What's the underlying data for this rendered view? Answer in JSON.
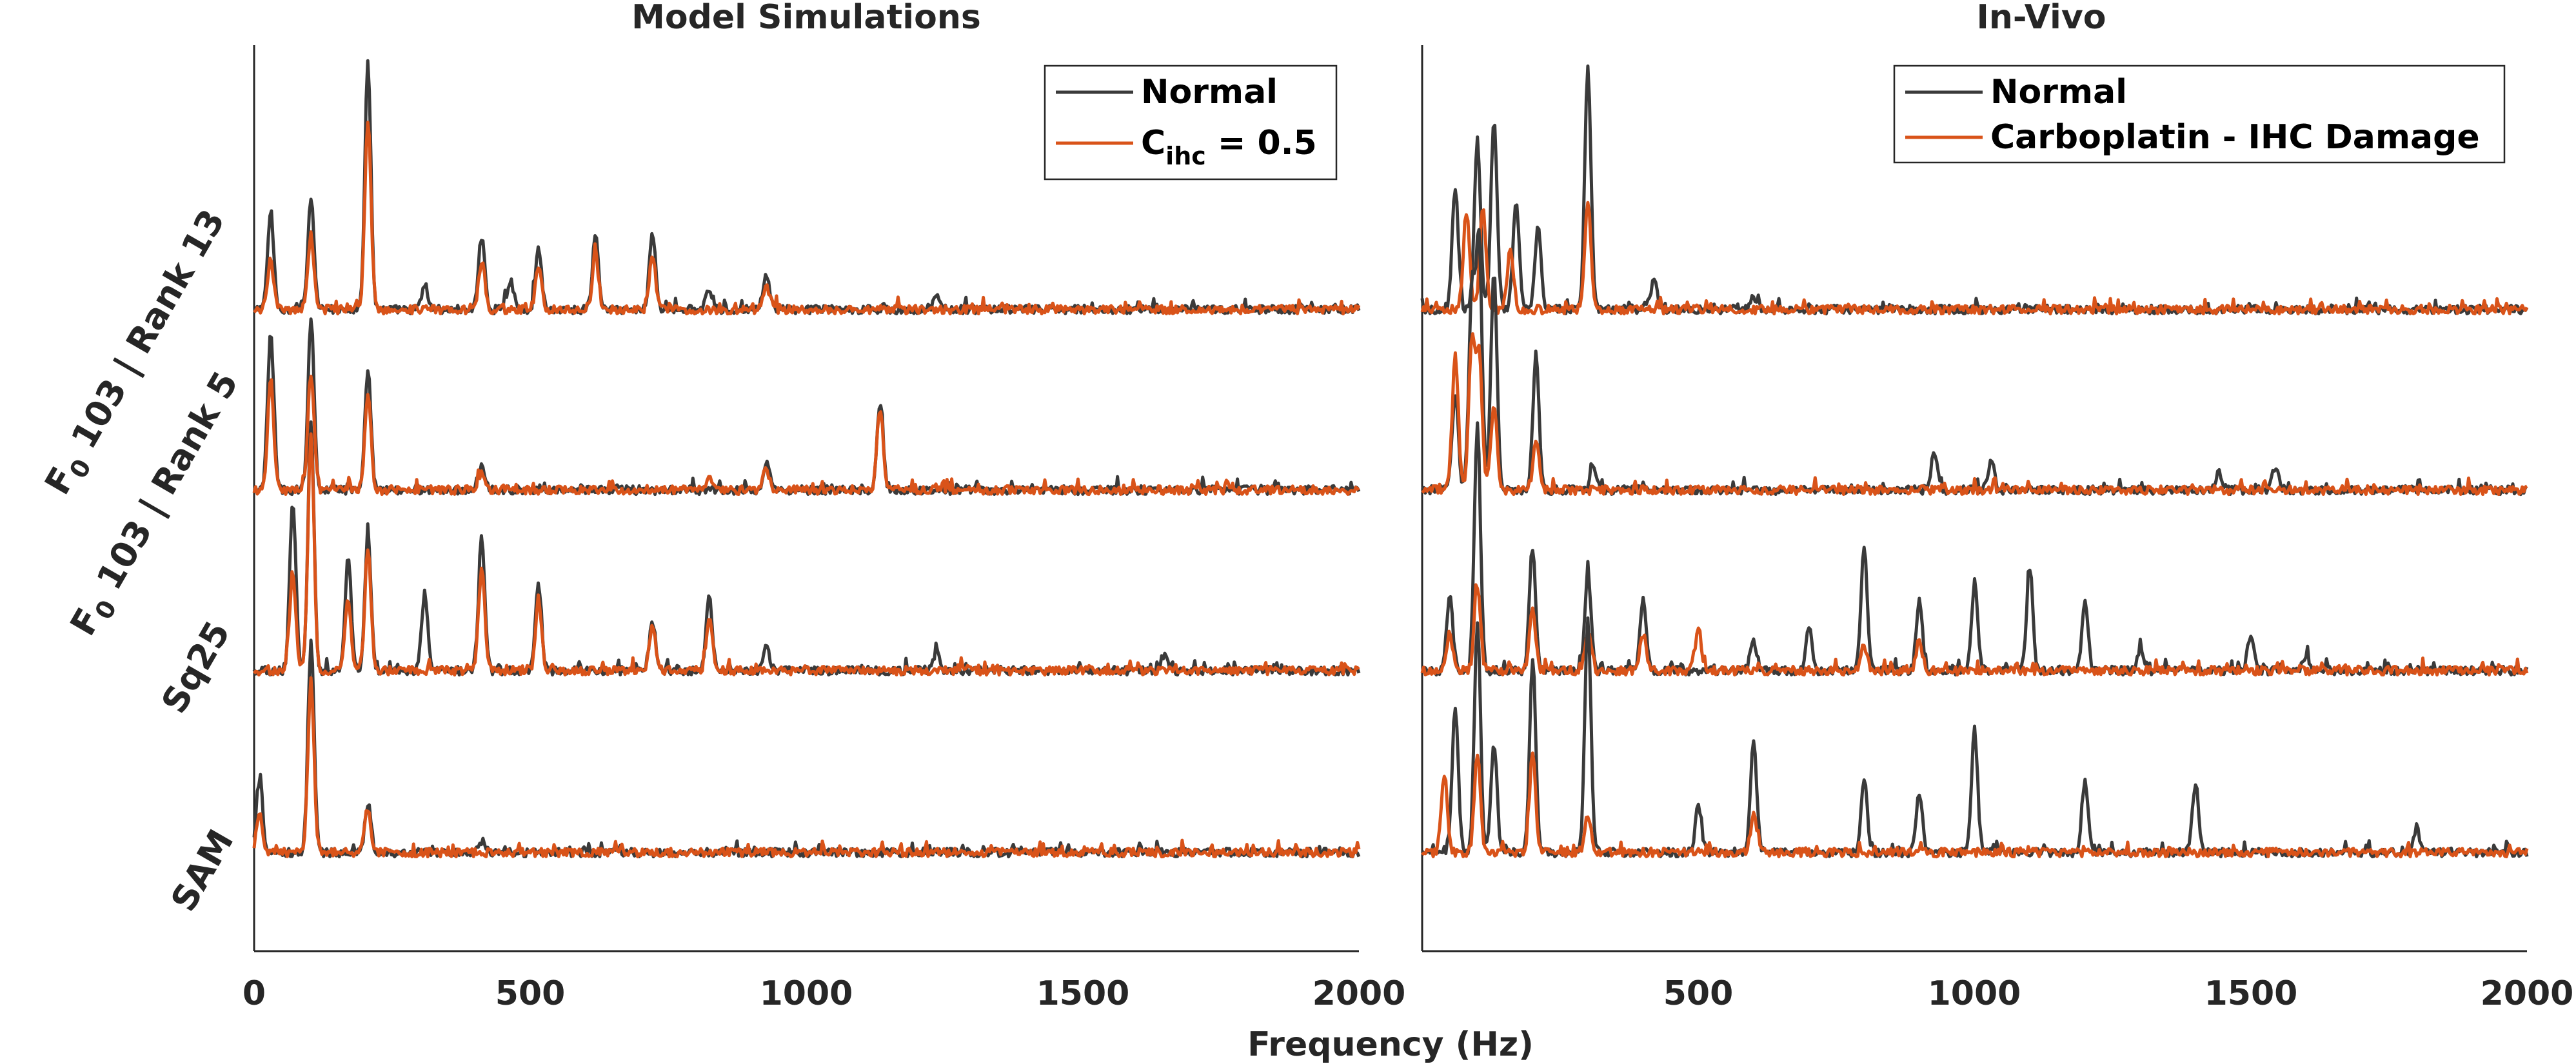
{
  "colors": {
    "normal": "#3a3a3a",
    "impaired": "#d95319",
    "axis": "#262626"
  },
  "xlabel": "Frequency (Hz)",
  "chart_data": [
    {
      "type": "line",
      "title": "Model Simulations",
      "xlabel": "Frequency (Hz)",
      "xlim": [
        0,
        2000
      ],
      "xticks": [
        "0",
        "500",
        "1000",
        "1500",
        "2000"
      ],
      "legend": {
        "position": "top-right",
        "entries": [
          {
            "main": "Normal",
            "sub": "",
            "tail": ""
          },
          {
            "main": "C",
            "sub": "ihc",
            "tail": " = 0.5"
          }
        ]
      },
      "row_labels": [
        {
          "pre": "F",
          "sub": "0",
          "post": " 103 | Rank 13"
        },
        {
          "pre": "F",
          "sub": "0",
          "post": " 103 | Rank 5"
        },
        {
          "pre": "",
          "sub": "",
          "post": "Sq25"
        },
        {
          "pre": "",
          "sub": "",
          "post": "SAM"
        }
      ],
      "rows": [
        {
          "name": "F0 103 | Rank 13",
          "normal": {
            "peaks": [
              [
                30,
                0.4
              ],
              [
                103,
                0.45
              ],
              [
                206,
                1.0
              ],
              [
                309,
                0.1
              ],
              [
                412,
                0.3
              ],
              [
                464,
                0.12
              ],
              [
                515,
                0.25
              ],
              [
                618,
                0.3
              ],
              [
                721,
                0.32
              ],
              [
                824,
                0.08
              ],
              [
                927,
                0.15
              ],
              [
                1236,
                0.06
              ]
            ]
          },
          "impaired": {
            "peaks": [
              [
                30,
                0.2
              ],
              [
                103,
                0.3
              ],
              [
                206,
                0.78
              ],
              [
                412,
                0.2
              ],
              [
                515,
                0.18
              ],
              [
                618,
                0.22
              ],
              [
                721,
                0.22
              ],
              [
                927,
                0.1
              ]
            ]
          }
        },
        {
          "name": "F0 103 | Rank 5",
          "normal": {
            "peaks": [
              [
                30,
                0.65
              ],
              [
                103,
                0.7
              ],
              [
                206,
                0.5
              ],
              [
                412,
                0.1
              ],
              [
                927,
                0.12
              ],
              [
                1133,
                0.35
              ]
            ]
          },
          "impaired": {
            "peaks": [
              [
                30,
                0.45
              ],
              [
                103,
                0.48
              ],
              [
                206,
                0.4
              ],
              [
                412,
                0.07
              ],
              [
                824,
                0.06
              ],
              [
                927,
                0.09
              ],
              [
                1133,
                0.33
              ]
            ]
          }
        },
        {
          "name": "Sq25",
          "normal": {
            "peaks": [
              [
                70,
                0.7
              ],
              [
                103,
                1.0
              ],
              [
                170,
                0.45
              ],
              [
                206,
                0.55
              ],
              [
                309,
                0.32
              ],
              [
                412,
                0.55
              ],
              [
                515,
                0.35
              ],
              [
                721,
                0.2
              ],
              [
                824,
                0.3
              ],
              [
                927,
                0.1
              ],
              [
                1236,
                0.08
              ],
              [
                1648,
                0.06
              ]
            ]
          },
          "impaired": {
            "peaks": [
              [
                70,
                0.4
              ],
              [
                103,
                0.95
              ],
              [
                170,
                0.3
              ],
              [
                206,
                0.5
              ],
              [
                412,
                0.42
              ],
              [
                515,
                0.28
              ],
              [
                721,
                0.18
              ],
              [
                824,
                0.22
              ]
            ]
          }
        },
        {
          "name": "SAM",
          "normal": {
            "peaks": [
              [
                10,
                0.3
              ],
              [
                103,
                0.85
              ],
              [
                206,
                0.2
              ],
              [
                412,
                0.05
              ]
            ]
          },
          "impaired": {
            "peaks": [
              [
                10,
                0.15
              ],
              [
                103,
                0.7
              ],
              [
                206,
                0.18
              ]
            ]
          }
        }
      ]
    },
    {
      "type": "line",
      "title": "In-Vivo",
      "xlabel": "Frequency (Hz)",
      "xlim": [
        0,
        2000
      ],
      "xticks": [
        "500",
        "1000",
        "1500",
        "2000"
      ],
      "legend": {
        "position": "top-right",
        "entries": [
          {
            "main": "Normal",
            "sub": "",
            "tail": ""
          },
          {
            "main": "Carboplatin - IHC Damage",
            "sub": "",
            "tail": ""
          }
        ]
      },
      "rows": [
        {
          "name": "F0 103 | Rank 13",
          "normal": {
            "peaks": [
              [
                60,
                0.5
              ],
              [
                100,
                0.7
              ],
              [
                130,
                0.78
              ],
              [
                170,
                0.45
              ],
              [
                210,
                0.35
              ],
              [
                300,
                1.0
              ],
              [
                420,
                0.12
              ],
              [
                600,
                0.05
              ]
            ]
          },
          "impaired": {
            "peaks": [
              [
                80,
                0.4
              ],
              [
                110,
                0.42
              ],
              [
                160,
                0.25
              ],
              [
                300,
                0.45
              ]
            ]
          }
        },
        {
          "name": "F0 103 | Rank 5",
          "normal": {
            "peaks": [
              [
                60,
                0.4
              ],
              [
                90,
                0.8
              ],
              [
                103,
                1.0
              ],
              [
                130,
                0.9
              ],
              [
                206,
                0.55
              ],
              [
                309,
                0.1
              ],
              [
                927,
                0.15
              ],
              [
                1030,
                0.12
              ],
              [
                1442,
                0.08
              ],
              [
                1545,
                0.1
              ]
            ]
          },
          "impaired": {
            "peaks": [
              [
                60,
                0.55
              ],
              [
                90,
                0.6
              ],
              [
                103,
                0.55
              ],
              [
                130,
                0.35
              ],
              [
                206,
                0.2
              ]
            ]
          }
        },
        {
          "name": "Sq25",
          "normal": {
            "peaks": [
              [
                50,
                0.3
              ],
              [
                100,
                1.0
              ],
              [
                200,
                0.5
              ],
              [
                300,
                0.4
              ],
              [
                400,
                0.3
              ],
              [
                600,
                0.12
              ],
              [
                700,
                0.18
              ],
              [
                800,
                0.5
              ],
              [
                900,
                0.28
              ],
              [
                1000,
                0.35
              ],
              [
                1100,
                0.42
              ],
              [
                1200,
                0.28
              ],
              [
                1300,
                0.08
              ],
              [
                1500,
                0.15
              ],
              [
                1600,
                0.05
              ]
            ]
          },
          "impaired": {
            "peaks": [
              [
                50,
                0.15
              ],
              [
                100,
                0.35
              ],
              [
                200,
                0.25
              ],
              [
                300,
                0.15
              ],
              [
                400,
                0.15
              ],
              [
                500,
                0.18
              ],
              [
                800,
                0.1
              ],
              [
                900,
                0.12
              ]
            ]
          }
        },
        {
          "name": "SAM",
          "normal": {
            "peaks": [
              [
                60,
                0.6
              ],
              [
                100,
                0.95
              ],
              [
                130,
                0.45
              ],
              [
                200,
                0.8
              ],
              [
                300,
                0.95
              ],
              [
                500,
                0.2
              ],
              [
                600,
                0.45
              ],
              [
                800,
                0.3
              ],
              [
                900,
                0.25
              ],
              [
                1000,
                0.5
              ],
              [
                1200,
                0.3
              ],
              [
                1400,
                0.28
              ],
              [
                1800,
                0.1
              ]
            ]
          },
          "impaired": {
            "peaks": [
              [
                40,
                0.3
              ],
              [
                100,
                0.4
              ],
              [
                200,
                0.4
              ],
              [
                300,
                0.15
              ],
              [
                600,
                0.15
              ]
            ]
          }
        }
      ]
    }
  ]
}
